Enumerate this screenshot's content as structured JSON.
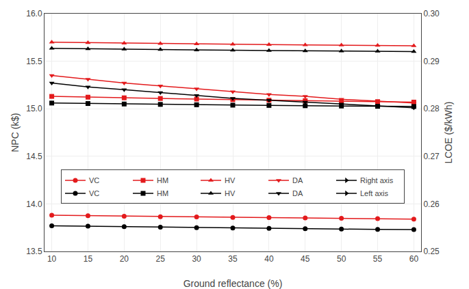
{
  "chart_data": {
    "type": "line",
    "xlabel": "Ground reflectance (%)",
    "ylabel": "NPC (k$)",
    "y2label": "LCOE ($/kWh)",
    "x": [
      10,
      15,
      20,
      25,
      30,
      35,
      40,
      45,
      50,
      55,
      60
    ],
    "xlim": [
      9,
      61
    ],
    "xticks": [
      10,
      15,
      20,
      25,
      30,
      35,
      40,
      45,
      50,
      55,
      60
    ],
    "ylim": [
      13.5,
      16.0
    ],
    "yticks": [
      13.5,
      {
        "value": 14.0,
        "label": "14.0"
      },
      14.5,
      {
        "value": 15.0,
        "label": "15.0"
      },
      15.5,
      {
        "value": 16.0,
        "label": "16.0"
      }
    ],
    "y2lim": [
      0.25,
      0.3
    ],
    "y2ticks": [
      0.25,
      0.26,
      0.27,
      0.28,
      0.29,
      {
        "value": 0.3,
        "label": "0.30"
      }
    ],
    "grid": true,
    "legend": "lower center",
    "series": [
      {
        "name": "VC",
        "color": "#e31a1c",
        "marker": "circle",
        "values": [
          13.88,
          13.875,
          13.87,
          13.865,
          13.862,
          13.858,
          13.855,
          13.852,
          13.848,
          13.845,
          13.84
        ]
      },
      {
        "name": "HM",
        "color": "#e31a1c",
        "marker": "square",
        "values": [
          15.13,
          15.122,
          15.115,
          15.108,
          15.102,
          15.096,
          15.09,
          15.085,
          15.08,
          15.075,
          15.07
        ]
      },
      {
        "name": "HV",
        "color": "#e31a1c",
        "marker": "triangle-up",
        "values": [
          15.7,
          15.695,
          15.69,
          15.686,
          15.682,
          15.678,
          15.675,
          15.672,
          15.669,
          15.666,
          15.663
        ]
      },
      {
        "name": "DA",
        "color": "#e31a1c",
        "marker": "triangle-down",
        "values": [
          15.35,
          15.31,
          15.27,
          15.24,
          15.21,
          15.18,
          15.15,
          15.13,
          15.1,
          15.08,
          15.06
        ]
      },
      {
        "name": "Right axis",
        "color": "#000000",
        "marker": "triangle-right",
        "axis": "y2",
        "values": [
          null,
          null,
          null,
          null,
          null,
          null,
          null,
          null,
          null,
          null,
          null
        ]
      },
      {
        "name": "VC",
        "color": "#000000",
        "marker": "circle",
        "values": [
          13.77,
          13.765,
          13.76,
          13.755,
          13.75,
          13.746,
          13.742,
          13.738,
          13.735,
          13.732,
          13.729
        ]
      },
      {
        "name": "HM",
        "color": "#000000",
        "marker": "square",
        "values": [
          15.06,
          15.055,
          15.05,
          15.046,
          15.042,
          15.038,
          15.035,
          15.032,
          15.029,
          15.026,
          15.024
        ]
      },
      {
        "name": "HV",
        "color": "#000000",
        "marker": "triangle-up",
        "values": [
          15.635,
          15.63,
          15.626,
          15.622,
          15.618,
          15.615,
          15.612,
          15.609,
          15.606,
          15.604,
          15.602
        ]
      },
      {
        "name": "DA",
        "color": "#000000",
        "marker": "triangle-down",
        "values": [
          15.27,
          15.23,
          15.2,
          15.17,
          15.14,
          15.11,
          15.09,
          15.07,
          15.05,
          15.03,
          15.01
        ]
      },
      {
        "name": "Left axis",
        "color": "#000000",
        "marker": "triangle-right",
        "values": [
          null,
          null,
          null,
          null,
          null,
          null,
          null,
          null,
          null,
          null,
          null
        ]
      }
    ]
  }
}
